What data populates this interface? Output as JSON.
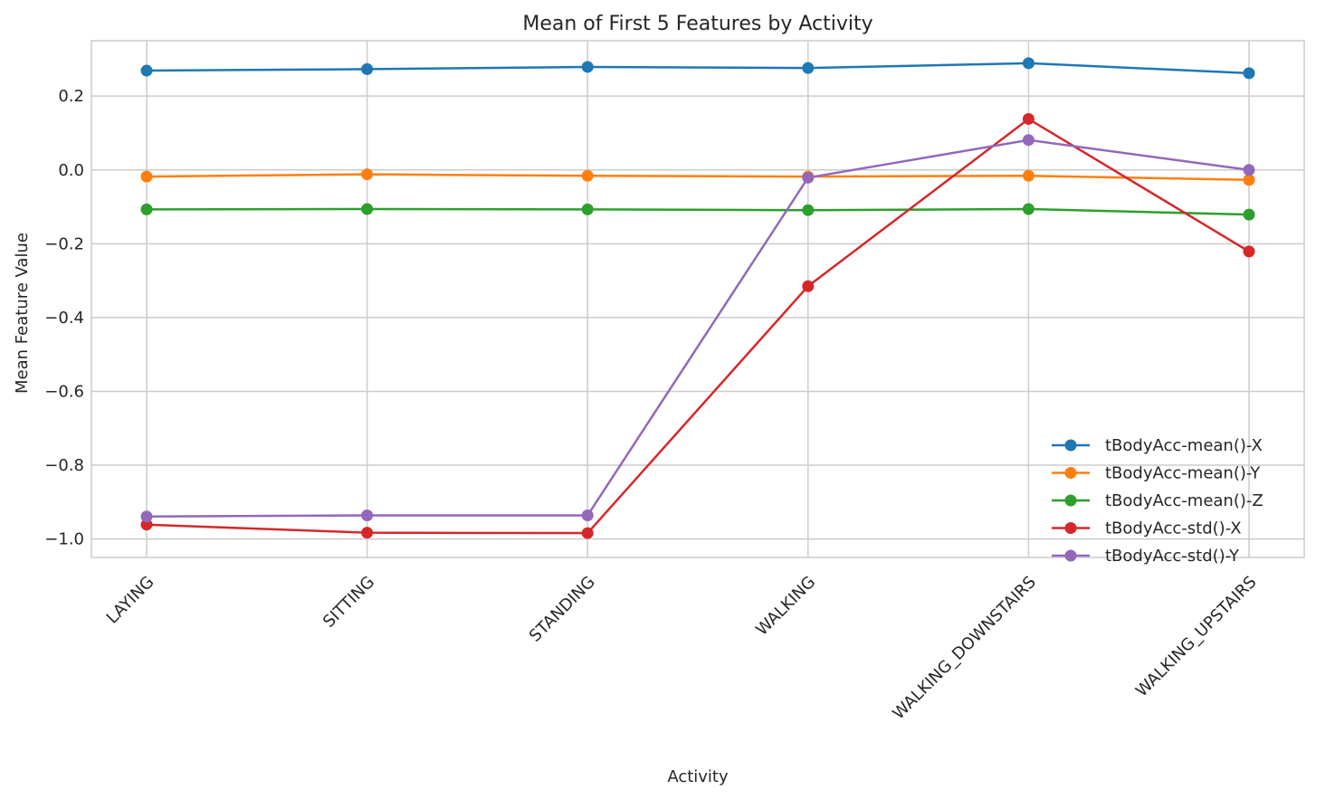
{
  "chart_data": {
    "type": "line",
    "title": "Mean of First 5 Features by Activity",
    "xlabel": "Activity",
    "ylabel": "Mean Feature Value",
    "categories": [
      "LAYING",
      "SITTING",
      "STANDING",
      "WALKING",
      "WALKING_DOWNSTAIRS",
      "WALKING_UPSTAIRS"
    ],
    "ylim": [
      -1.05,
      0.35
    ],
    "yticks": [
      0.2,
      0.0,
      -0.2,
      -0.4,
      -0.6,
      -0.8,
      -1.0
    ],
    "ytick_labels": [
      "0.2",
      "0.0",
      "−0.2",
      "−0.4",
      "−0.6",
      "−0.8",
      "−1.0"
    ],
    "grid": true,
    "legend_position": "bottom-right",
    "series": [
      {
        "name": "tBodyAcc-mean()-X",
        "color": "#1f77b4",
        "values": [
          0.269,
          0.273,
          0.279,
          0.276,
          0.289,
          0.262
        ]
      },
      {
        "name": "tBodyAcc-mean()-Y",
        "color": "#ff7f0e",
        "values": [
          -0.018,
          -0.012,
          -0.016,
          -0.018,
          -0.016,
          -0.027
        ]
      },
      {
        "name": "tBodyAcc-mean()-Z",
        "color": "#2ca02c",
        "values": [
          -0.107,
          -0.106,
          -0.107,
          -0.109,
          -0.106,
          -0.121
        ]
      },
      {
        "name": "tBodyAcc-std()-X",
        "color": "#d62728",
        "values": [
          -0.961,
          -0.983,
          -0.984,
          -0.315,
          0.138,
          -0.221
        ]
      },
      {
        "name": "tBodyAcc-std()-Y",
        "color": "#9467bd",
        "values": [
          -0.939,
          -0.936,
          -0.936,
          -0.021,
          0.081,
          0.0
        ]
      }
    ]
  }
}
